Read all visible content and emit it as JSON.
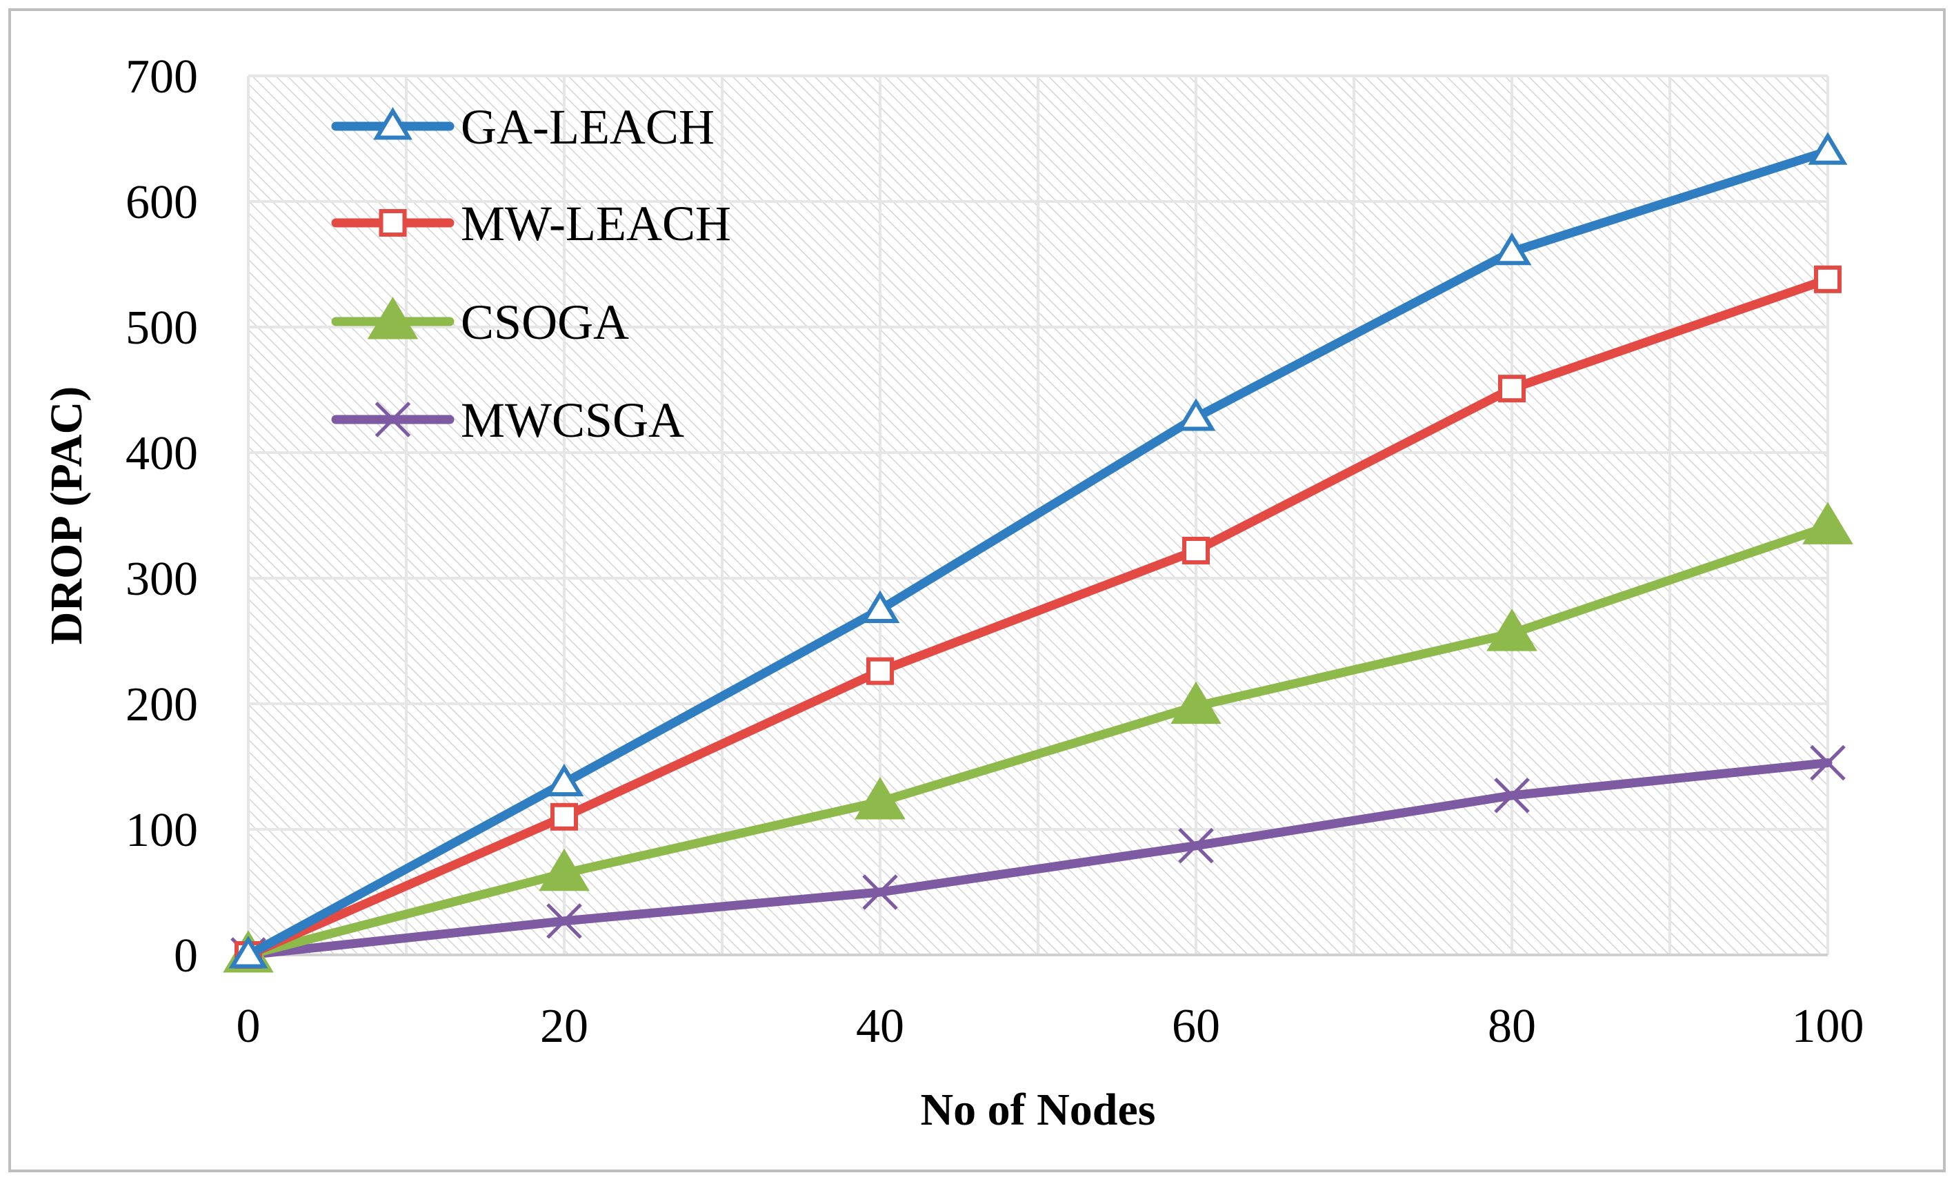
{
  "chart_data": {
    "type": "line",
    "title": "",
    "xlabel": "No of Nodes",
    "ylabel": "DROP (PAC)",
    "x": [
      0,
      20,
      40,
      60,
      80,
      100
    ],
    "xlim": [
      0,
      100
    ],
    "ylim": [
      0,
      700
    ],
    "xticks": [
      0,
      20,
      40,
      60,
      80,
      100
    ],
    "yticks": [
      0,
      100,
      200,
      300,
      400,
      500,
      600,
      700
    ],
    "grid": true,
    "legend_position": "top-left",
    "series": [
      {
        "name": "GA-LEACH",
        "color": "#2E7EC1",
        "marker": "triangle-open",
        "values": [
          0,
          137,
          275,
          428,
          560,
          640
        ]
      },
      {
        "name": "MW-LEACH",
        "color": "#E24A43",
        "marker": "square-open",
        "values": [
          0,
          110,
          226,
          322,
          451,
          538
        ]
      },
      {
        "name": "CSOGA",
        "color": "#8DBA4A",
        "marker": "triangle-filled",
        "values": [
          0,
          65,
          122,
          198,
          256,
          341
        ]
      },
      {
        "name": "MWCSGA",
        "color": "#7D5AA2",
        "marker": "x",
        "values": [
          0,
          27,
          50,
          87,
          127,
          153
        ]
      }
    ]
  }
}
